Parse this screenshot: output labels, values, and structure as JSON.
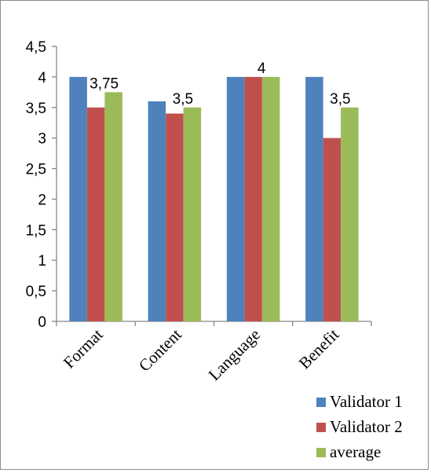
{
  "chart_data": {
    "type": "bar",
    "title": "",
    "xlabel": "",
    "ylabel": "",
    "categories": [
      "Format",
      "Content",
      "Language",
      "Benefit"
    ],
    "series": [
      {
        "name": "Validator 1",
        "values": [
          4,
          3.6,
          4,
          4
        ],
        "color": "#4F81BD"
      },
      {
        "name": "Validator 2",
        "values": [
          3.5,
          3.4,
          4,
          3
        ],
        "color": "#C0504D"
      },
      {
        "name": "average",
        "values": [
          3.75,
          3.5,
          4,
          3.5
        ],
        "color": "#9BBB59"
      }
    ],
    "ylim": [
      0,
      4.5
    ],
    "yticks": [
      "0",
      "0,5",
      "1",
      "1,5",
      "2",
      "2,5",
      "3",
      "3,5",
      "4",
      "4,5"
    ],
    "data_labels": [
      {
        "category": "Format",
        "text": "3,75"
      },
      {
        "category": "Content",
        "text": "3,5"
      },
      {
        "category": "Language",
        "text": "4"
      },
      {
        "category": "Benefit",
        "text": "3,5"
      }
    ],
    "grid": false,
    "legend_position": "bottom-right"
  }
}
